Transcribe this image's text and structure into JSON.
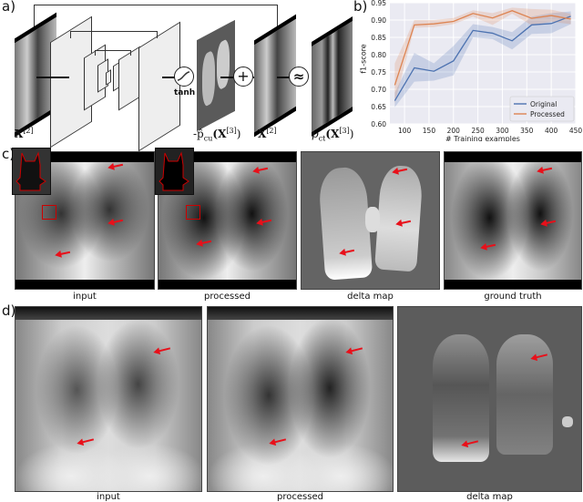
{
  "panel_labels": {
    "a": "a)",
    "b": "b)",
    "c": "c)",
    "d": "d)"
  },
  "panel_a": {
    "input_label_sym": "X",
    "input_label_sup": "[2]",
    "activation_label": "tanh",
    "delta_label_prefix": "-p̂",
    "delta_label_sub": "cu",
    "delta_label_arg": "(X",
    "delta_label_arg_sup": "[3]",
    "delta_label_close": ")",
    "plus_symbol": "+",
    "skip_label_sym": "X",
    "skip_label_sup": "[2]",
    "approx_symbol": "≈",
    "target_label_prefix": "p",
    "target_label_sub": "ct",
    "target_label_arg": "(X",
    "target_label_arg_sup": "[3]",
    "target_label_close": ")"
  },
  "chart_data": {
    "type": "line",
    "title": "",
    "xlabel": "# Training examples",
    "ylabel": "f1-score",
    "x": [
      80,
      120,
      160,
      200,
      240,
      280,
      320,
      360,
      400,
      440
    ],
    "xticks": [
      "100",
      "150",
      "200",
      "250",
      "300",
      "350",
      "400",
      "450"
    ],
    "yticks": [
      "0.60",
      "0.65",
      "0.70",
      "0.75",
      "0.80",
      "0.85",
      "0.90",
      "0.95"
    ],
    "xlim": [
      70,
      450
    ],
    "ylim": [
      0.6,
      0.95
    ],
    "grid": true,
    "legend_position": "lower right",
    "series": [
      {
        "name": "Original",
        "color": "#4c72b0",
        "values": [
          0.667,
          0.762,
          0.752,
          0.782,
          0.87,
          0.862,
          0.84,
          0.886,
          0.89,
          0.911
        ],
        "lower": [
          0.648,
          0.722,
          0.725,
          0.74,
          0.85,
          0.845,
          0.815,
          0.86,
          0.862,
          0.888
        ],
        "upper": [
          0.69,
          0.805,
          0.775,
          0.825,
          0.888,
          0.88,
          0.865,
          0.91,
          0.92,
          0.925
        ]
      },
      {
        "name": "Processed",
        "color": "#dd8452",
        "values": [
          0.712,
          0.886,
          0.889,
          0.896,
          0.919,
          0.906,
          0.927,
          0.905,
          0.913,
          0.903
        ],
        "lower": [
          0.66,
          0.878,
          0.88,
          0.888,
          0.91,
          0.886,
          0.918,
          0.885,
          0.895,
          0.888
        ],
        "upper": [
          0.775,
          0.9,
          0.9,
          0.906,
          0.928,
          0.92,
          0.936,
          0.932,
          0.93,
          0.918
        ]
      }
    ]
  },
  "panel_c": {
    "captions": [
      "input",
      "processed",
      "delta map",
      "ground truth"
    ]
  },
  "panel_d": {
    "captions": [
      "input",
      "processed",
      "delta map"
    ]
  },
  "colors": {
    "arrow": "#e8101a",
    "delta_bg": "#5f5f5f",
    "chart_bg": "#eaeaf2"
  }
}
